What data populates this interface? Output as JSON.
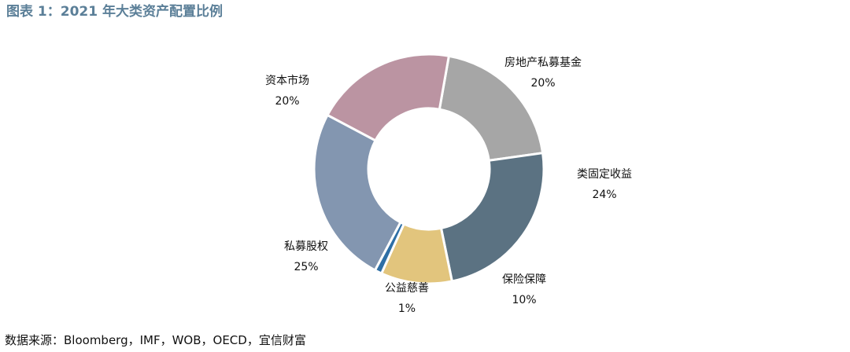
{
  "title": "图表 1：2021 年大类资产配置比例",
  "source": "数据来源：Bloomberg，IMF，WOB，OECD，宜信财富",
  "chart_data": {
    "type": "pie",
    "donut": true,
    "categories": [
      "房地产私募基金",
      "类固定收益",
      "保险保障",
      "公益慈善",
      "私募股权",
      "资本市场"
    ],
    "values": [
      20,
      24,
      10,
      1,
      25,
      20
    ],
    "value_labels": [
      "20%",
      "24%",
      "10%",
      "1%",
      "25%",
      "20%"
    ],
    "colors": [
      "#a6a6a6",
      "#5b7282",
      "#e2c57d",
      "#2e6fa6",
      "#8396b0",
      "#bb94a2"
    ],
    "legend": "none"
  }
}
